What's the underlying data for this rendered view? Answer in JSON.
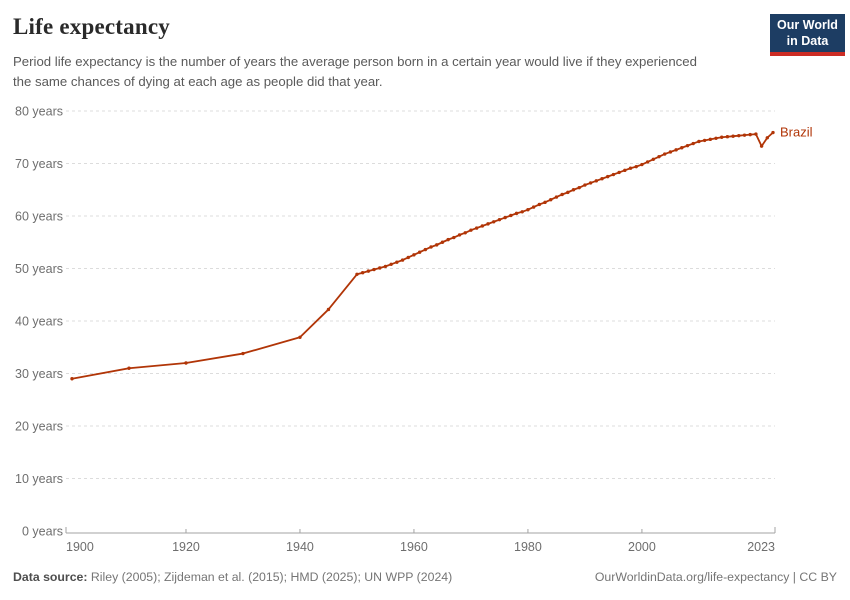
{
  "header": {
    "title": "Life expectancy",
    "subtitle": "Period life expectancy is the number of years the average person born in a certain year would live if they experienced the same chances of dying at each age as people did that year.",
    "logo_line1": "Our World",
    "logo_line2": "in Data"
  },
  "footer": {
    "source_label": "Data source:",
    "source_text": " Riley (2005); Zijdeman et al. (2015); HMD (2025); UN WPP (2024)",
    "rights": "OurWorldinData.org/life-expectancy | CC BY"
  },
  "colors": {
    "series_brazil": "#b13507",
    "logo_background": "#1d3d63",
    "logo_accent_bar": "#cc2c24",
    "gridline": "#dcdcdc",
    "axis_line": "#a3a3a3",
    "axis_text": "#6e6e6e"
  },
  "chart_data": {
    "type": "line",
    "title": "Life expectancy",
    "xlabel": "",
    "ylabel": "",
    "xlim": [
      1900,
      2023
    ],
    "ylim": [
      0,
      80
    ],
    "x_ticks": [
      1900,
      1920,
      1940,
      1960,
      1980,
      2000,
      2023
    ],
    "y_ticks": [
      0,
      10,
      20,
      30,
      40,
      50,
      60,
      70,
      80
    ],
    "y_tick_suffix": " years",
    "grid": "horizontal-dashed",
    "legend": "end-of-line-label",
    "series": [
      {
        "name": "Brazil",
        "color": "#b13507",
        "points": [
          [
            1900,
            29.0
          ],
          [
            1910,
            31.0
          ],
          [
            1920,
            32.0
          ],
          [
            1930,
            33.8
          ],
          [
            1940,
            36.9
          ],
          [
            1945,
            42.2
          ],
          [
            1950,
            48.9
          ],
          [
            1951,
            49.2
          ],
          [
            1952,
            49.5
          ],
          [
            1953,
            49.8
          ],
          [
            1954,
            50.1
          ],
          [
            1955,
            50.4
          ],
          [
            1956,
            50.8
          ],
          [
            1957,
            51.2
          ],
          [
            1958,
            51.6
          ],
          [
            1959,
            52.1
          ],
          [
            1960,
            52.6
          ],
          [
            1961,
            53.1
          ],
          [
            1962,
            53.6
          ],
          [
            1963,
            54.1
          ],
          [
            1964,
            54.5
          ],
          [
            1965,
            55.0
          ],
          [
            1966,
            55.5
          ],
          [
            1967,
            55.9
          ],
          [
            1968,
            56.4
          ],
          [
            1969,
            56.8
          ],
          [
            1970,
            57.3
          ],
          [
            1971,
            57.7
          ],
          [
            1972,
            58.1
          ],
          [
            1973,
            58.5
          ],
          [
            1974,
            58.9
          ],
          [
            1975,
            59.3
          ],
          [
            1976,
            59.7
          ],
          [
            1977,
            60.1
          ],
          [
            1978,
            60.5
          ],
          [
            1979,
            60.8
          ],
          [
            1980,
            61.2
          ],
          [
            1981,
            61.7
          ],
          [
            1982,
            62.2
          ],
          [
            1983,
            62.6
          ],
          [
            1984,
            63.1
          ],
          [
            1985,
            63.6
          ],
          [
            1986,
            64.1
          ],
          [
            1987,
            64.5
          ],
          [
            1988,
            65.0
          ],
          [
            1989,
            65.4
          ],
          [
            1990,
            65.9
          ],
          [
            1991,
            66.3
          ],
          [
            1992,
            66.7
          ],
          [
            1993,
            67.1
          ],
          [
            1994,
            67.5
          ],
          [
            1995,
            67.9
          ],
          [
            1996,
            68.3
          ],
          [
            1997,
            68.7
          ],
          [
            1998,
            69.1
          ],
          [
            1999,
            69.4
          ],
          [
            2000,
            69.8
          ],
          [
            2001,
            70.3
          ],
          [
            2002,
            70.8
          ],
          [
            2003,
            71.3
          ],
          [
            2004,
            71.8
          ],
          [
            2005,
            72.2
          ],
          [
            2006,
            72.6
          ],
          [
            2007,
            73.0
          ],
          [
            2008,
            73.4
          ],
          [
            2009,
            73.8
          ],
          [
            2010,
            74.2
          ],
          [
            2011,
            74.4
          ],
          [
            2012,
            74.6
          ],
          [
            2013,
            74.8
          ],
          [
            2014,
            75.0
          ],
          [
            2015,
            75.1
          ],
          [
            2016,
            75.2
          ],
          [
            2017,
            75.3
          ],
          [
            2018,
            75.4
          ],
          [
            2019,
            75.5
          ],
          [
            2020,
            75.6
          ],
          [
            2021,
            73.3
          ],
          [
            2022,
            74.9
          ],
          [
            2023,
            75.9
          ]
        ]
      }
    ]
  }
}
